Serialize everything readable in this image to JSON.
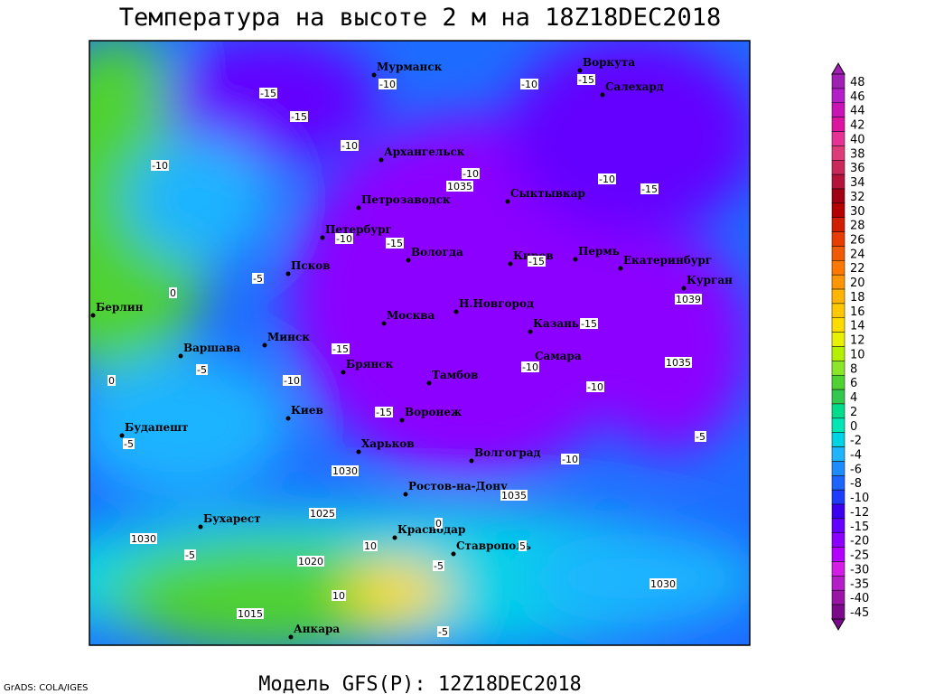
{
  "title": "Температура на высоте 2 м на 18Z18DEC2018",
  "footer": "Модель GFS(P): 12Z18DEC2018",
  "credit": "GrADS: COLA/IGES",
  "cities": [
    "Мурманск",
    "Воркута",
    "Салехард",
    "Архангельск",
    "Сыктывкар",
    "Петрозаводск",
    "Петербург",
    "Вологда",
    "Киров",
    "Пермь",
    "Екатеринбург",
    "Курган",
    "Псков",
    "Берлин",
    "Москва",
    "Н.Новгород",
    "Казань",
    "Минск",
    "Варшава",
    "Самара",
    "Брянск",
    "Тамбов",
    "Киев",
    "Воронеж",
    "Будапешт",
    "Харьков",
    "Волгоград",
    "Ростов-на-Дону",
    "Бухарест",
    "Краснодар",
    "Ставрополь",
    "Анкара"
  ],
  "contour_labels": [
    -10,
    -10,
    -15,
    -10,
    -15,
    -15,
    -10,
    -10,
    -10,
    -15,
    -10,
    -15,
    -15,
    -10,
    -15,
    -15,
    -15,
    -10,
    -10,
    -10,
    -5,
    -5,
    -5,
    -5,
    -5,
    -5,
    0,
    0,
    5,
    10,
    10,
    0,
    -5
  ],
  "isobar_labels": [
    1035,
    1039,
    1035,
    1030,
    1035,
    1025,
    1030,
    1020,
    1015,
    1030
  ],
  "colorbar": {
    "levels": [
      48,
      46,
      44,
      42,
      40,
      38,
      36,
      34,
      32,
      30,
      28,
      26,
      24,
      22,
      20,
      18,
      16,
      14,
      12,
      10,
      8,
      6,
      4,
      2,
      0,
      -2,
      -4,
      -6,
      -8,
      -10,
      -12,
      -15,
      -20,
      -25,
      -30,
      -35,
      -40,
      -45
    ],
    "colors": [
      "#a020b4",
      "#b41ec8",
      "#c814b4",
      "#dc14a0",
      "#e63296",
      "#dc3c78",
      "#c8285a",
      "#b4143c",
      "#a00014",
      "#b40000",
      "#d21e00",
      "#e63c00",
      "#f05a00",
      "#ff7800",
      "#ff9600",
      "#ffb400",
      "#ffc800",
      "#ffdc00",
      "#e6f000",
      "#b4f000",
      "#8ce628",
      "#50d232",
      "#32c850",
      "#00dc8c",
      "#00e6b4",
      "#00d2e6",
      "#1eb4ff",
      "#1e8cff",
      "#1e64ff",
      "#1e3cff",
      "#3c00f0",
      "#6400ff",
      "#8c00ff",
      "#b400ff",
      "#d21ee6",
      "#b41ec8",
      "#9a14a8",
      "#7a0a8a"
    ]
  }
}
